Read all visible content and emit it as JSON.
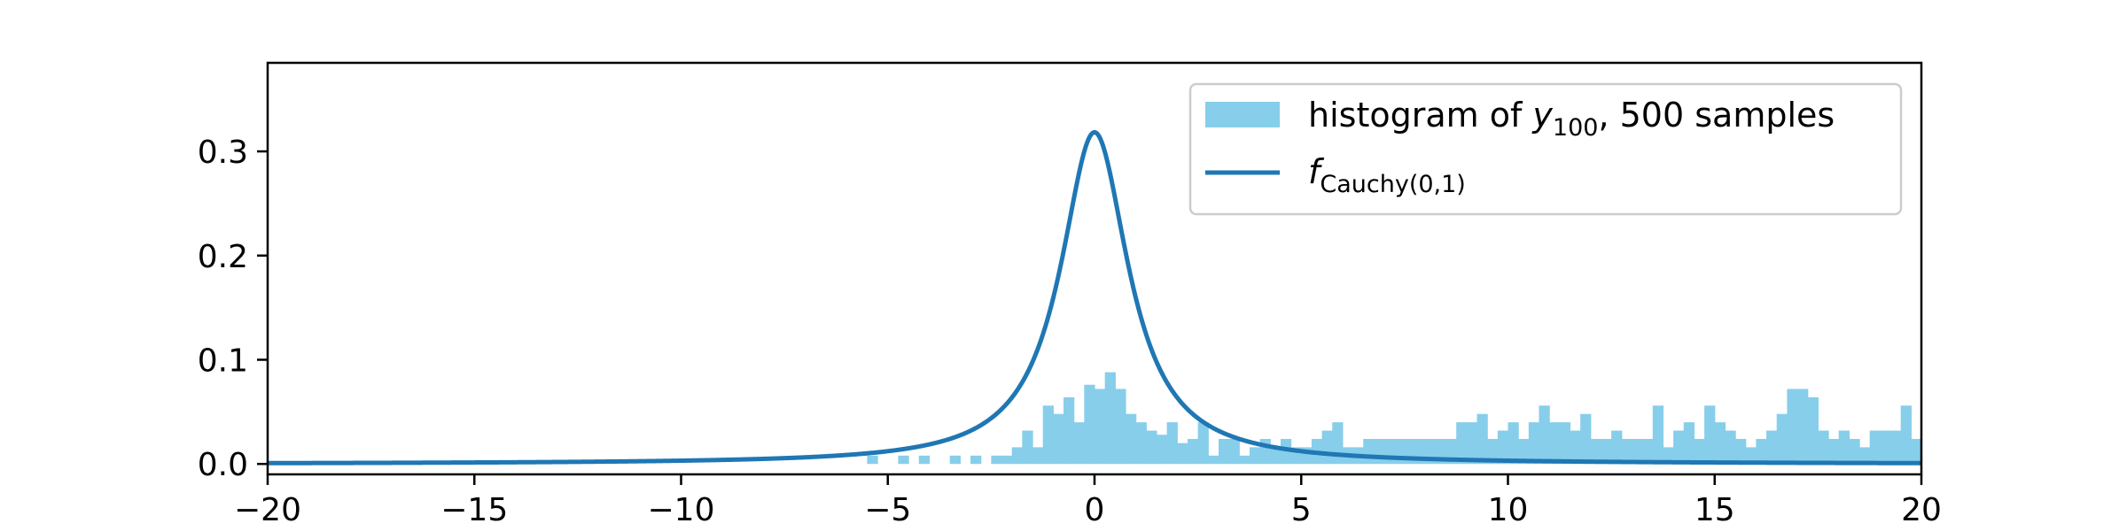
{
  "chart_data": {
    "type": "bar",
    "title": "",
    "xlabel": "",
    "ylabel": "",
    "xlim": [
      -20,
      20
    ],
    "ylim": [
      -0.01,
      0.385
    ],
    "grid": false,
    "legend_placement": "top-right",
    "x_ticks": [
      -20,
      -15,
      -10,
      -5,
      0,
      5,
      10,
      15,
      20
    ],
    "x_tick_labels": [
      "−20",
      "−15",
      "−10",
      "−5",
      "0",
      "5",
      "10",
      "15",
      "20"
    ],
    "y_ticks": [
      0.0,
      0.1,
      0.2,
      0.3
    ],
    "y_tick_labels": [
      "0.0",
      "0.1",
      "0.2",
      "0.3"
    ],
    "colors": {
      "histogram": "#87ceeb",
      "line": "#1f77b4",
      "legend_border": "#cccccc"
    },
    "legend": [
      {
        "kind": "patch",
        "text": "histogram of ",
        "math_var": "y",
        "math_sub": "100",
        "text_after": ", 500 samples"
      },
      {
        "kind": "line",
        "math_var": "f",
        "math_sub": "Cauchy(0,1)"
      }
    ],
    "histogram": {
      "name": "histogram of y100, 500 samples",
      "bin_width": 0.25,
      "bins": [
        [
          -5.5,
          0.008
        ],
        [
          -4.75,
          0.008
        ],
        [
          -4.25,
          0.008
        ],
        [
          -3.5,
          0.008
        ],
        [
          -3.0,
          0.008
        ],
        [
          -2.5,
          0.008
        ],
        [
          -2.25,
          0.008
        ],
        [
          -2.0,
          0.016
        ],
        [
          -1.75,
          0.032
        ],
        [
          -1.5,
          0.016
        ],
        [
          -1.25,
          0.056
        ],
        [
          -1.0,
          0.048
        ],
        [
          -0.75,
          0.064
        ],
        [
          -0.5,
          0.04
        ],
        [
          -0.25,
          0.076
        ],
        [
          0.0,
          0.072
        ],
        [
          0.25,
          0.088
        ],
        [
          0.5,
          0.072
        ],
        [
          0.75,
          0.048
        ],
        [
          1.0,
          0.04
        ],
        [
          1.25,
          0.032
        ],
        [
          1.5,
          0.028
        ],
        [
          1.75,
          0.04
        ],
        [
          2.0,
          0.02
        ],
        [
          2.25,
          0.024
        ],
        [
          2.5,
          0.04
        ],
        [
          2.75,
          0.008
        ],
        [
          3.0,
          0.024
        ],
        [
          3.25,
          0.024
        ],
        [
          3.5,
          0.008
        ],
        [
          3.75,
          0.016
        ],
        [
          4.0,
          0.024
        ],
        [
          4.25,
          0.016
        ],
        [
          4.5,
          0.024
        ],
        [
          4.75,
          0.016
        ],
        [
          5.0,
          0.016
        ],
        [
          5.25,
          0.024
        ],
        [
          5.5,
          0.032
        ],
        [
          5.75,
          0.04
        ],
        [
          6.0,
          0.016
        ],
        [
          6.25,
          0.016
        ],
        [
          6.5,
          0.024
        ],
        [
          6.75,
          0.024
        ],
        [
          7.0,
          0.024
        ],
        [
          7.25,
          0.024
        ],
        [
          7.5,
          0.024
        ],
        [
          7.75,
          0.024
        ],
        [
          8.0,
          0.024
        ],
        [
          8.25,
          0.024
        ],
        [
          8.5,
          0.024
        ],
        [
          8.75,
          0.04
        ],
        [
          9.0,
          0.04
        ],
        [
          9.25,
          0.048
        ],
        [
          9.5,
          0.024
        ],
        [
          9.75,
          0.032
        ],
        [
          10.0,
          0.04
        ],
        [
          10.25,
          0.024
        ],
        [
          10.5,
          0.04
        ],
        [
          10.75,
          0.056
        ],
        [
          11.0,
          0.04
        ],
        [
          11.25,
          0.04
        ],
        [
          11.5,
          0.032
        ],
        [
          11.75,
          0.048
        ],
        [
          12.0,
          0.024
        ],
        [
          12.25,
          0.024
        ],
        [
          12.5,
          0.032
        ],
        [
          12.75,
          0.024
        ],
        [
          13.0,
          0.024
        ],
        [
          13.25,
          0.024
        ],
        [
          13.5,
          0.056
        ],
        [
          13.75,
          0.016
        ],
        [
          14.0,
          0.032
        ],
        [
          14.25,
          0.04
        ],
        [
          14.5,
          0.024
        ],
        [
          14.75,
          0.056
        ],
        [
          15.0,
          0.04
        ],
        [
          15.25,
          0.032
        ],
        [
          15.5,
          0.024
        ],
        [
          15.75,
          0.016
        ],
        [
          16.0,
          0.024
        ],
        [
          16.25,
          0.032
        ],
        [
          16.5,
          0.048
        ],
        [
          16.75,
          0.072
        ],
        [
          17.0,
          0.072
        ],
        [
          17.25,
          0.064
        ],
        [
          17.5,
          0.032
        ],
        [
          17.75,
          0.024
        ],
        [
          18.0,
          0.032
        ],
        [
          18.25,
          0.024
        ],
        [
          18.5,
          0.016
        ],
        [
          18.75,
          0.032
        ],
        [
          19.0,
          0.032
        ],
        [
          19.25,
          0.032
        ],
        [
          19.5,
          0.056
        ],
        [
          19.75,
          0.024
        ]
      ]
    },
    "curve": {
      "name": "f_Cauchy(0,1)",
      "formula": "1 / (pi * (1 + x^2))",
      "x_range": [
        -20,
        20
      ]
    }
  }
}
